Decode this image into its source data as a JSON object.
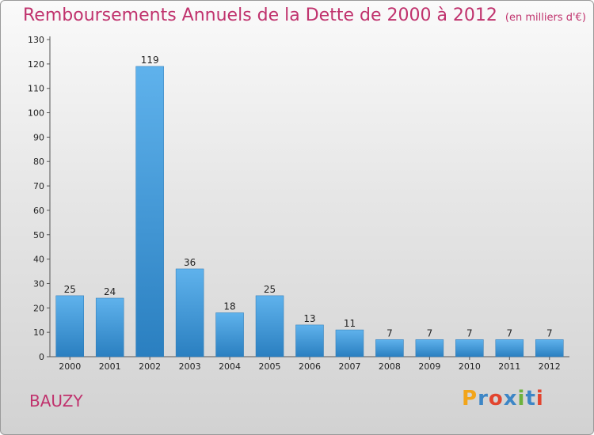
{
  "title": "Remboursements Annuels de la Dette de 2000 à 2012",
  "unit": "(en milliers d'€)",
  "commune": "BAUZY",
  "logo": {
    "letters": [
      "P",
      "r",
      "o",
      "x",
      "i",
      "t",
      "i"
    ],
    "colors": [
      "#f2a51a",
      "#3d86c6",
      "#e2452f",
      "#3d86c6",
      "#6cb23d",
      "#3d86c6",
      "#e2452f"
    ]
  },
  "chart_data": {
    "type": "bar",
    "categories": [
      "2000",
      "2001",
      "2002",
      "2003",
      "2004",
      "2005",
      "2006",
      "2007",
      "2008",
      "2009",
      "2010",
      "2011",
      "2012"
    ],
    "values": [
      25,
      24,
      119,
      36,
      18,
      25,
      13,
      11,
      7,
      7,
      7,
      7,
      7
    ],
    "title": "Remboursements Annuels de la Dette de 2000 à 2012",
    "ylim": [
      0,
      130
    ],
    "yticks": [
      0,
      10,
      20,
      30,
      40,
      50,
      60,
      70,
      80,
      90,
      100,
      110,
      120,
      130
    ],
    "grid": false,
    "legend": "none",
    "bar_color": "#3a93d6"
  }
}
